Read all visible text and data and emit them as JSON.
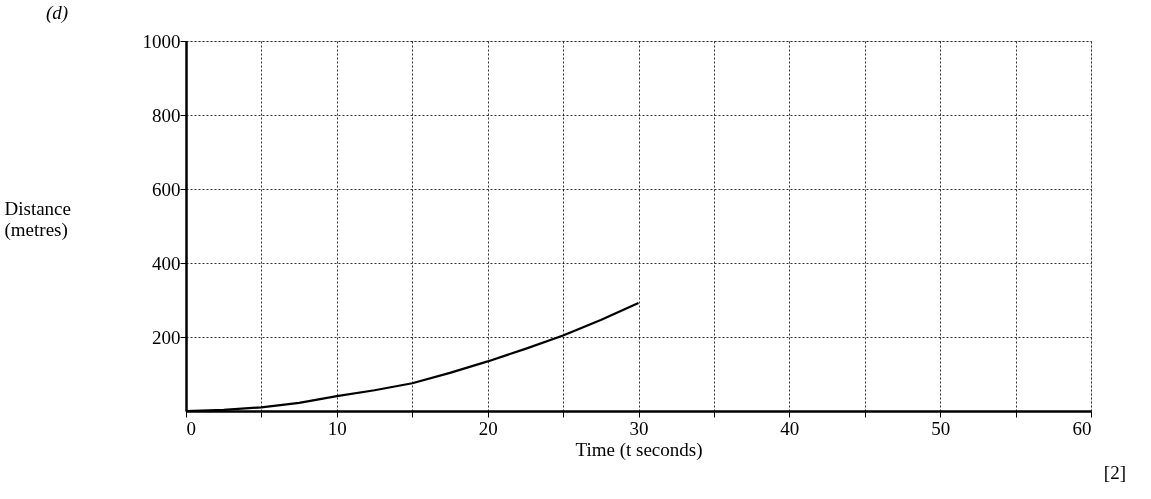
{
  "chart_data": {
    "type": "line",
    "xlabel": "Time (t seconds)",
    "ylabel": "Distance (metres)",
    "annotations": [
      "(d)",
      "[2]"
    ],
    "x": [
      0,
      2.5,
      5,
      7.5,
      10,
      12.5,
      15,
      17.5,
      20,
      22.5,
      25,
      27.5,
      30
    ],
    "series": [
      {
        "color": "#000000",
        "values": [
          0,
          3,
          10,
          22,
          40,
          56,
          75,
          103,
          134,
          168,
          204,
          246,
          292
        ]
      }
    ],
    "xlim": [
      0,
      60
    ],
    "ylim": [
      0,
      1000
    ],
    "xticks": [
      0,
      {
        "value": 5,
        "label": null
      },
      10,
      {
        "value": 15,
        "label": null
      },
      20,
      {
        "value": 25,
        "label": null
      },
      30,
      {
        "value": 35,
        "label": null
      },
      40,
      {
        "value": 45,
        "label": null
      },
      50,
      {
        "value": 55,
        "label": null
      },
      60
    ],
    "yticks": [
      200,
      400,
      600,
      800,
      1000
    ],
    "grid": true,
    "marker": "none",
    "line_style": "solid"
  }
}
